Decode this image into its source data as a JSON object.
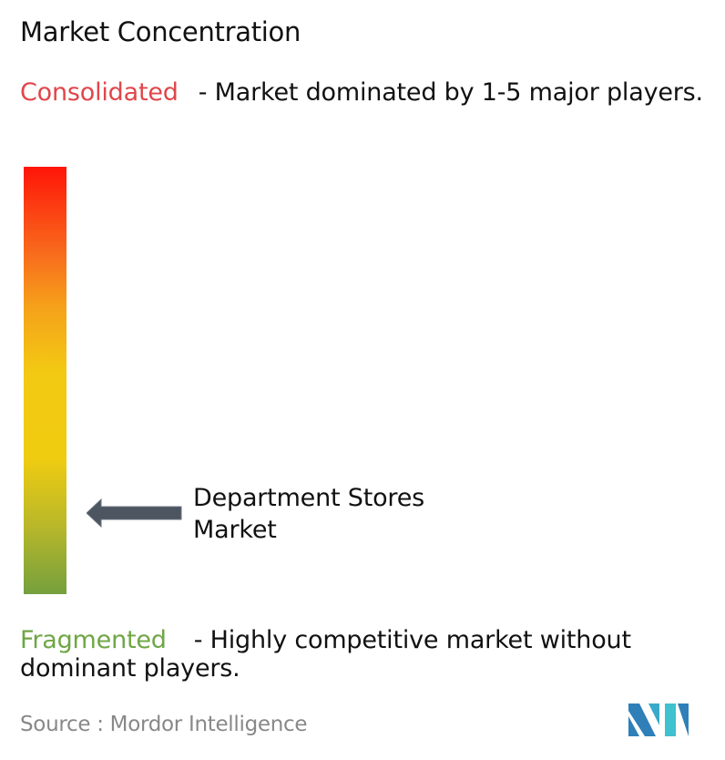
{
  "title": "Market Concentration",
  "consolidated": {
    "label": "Consolidated",
    "description": "- Market dominated by 1-5 major players.",
    "color": "#e0464a"
  },
  "fragmented": {
    "label": "Fragmented",
    "description": "- Highly competitive market without dominant players.",
    "color": "#6fa644"
  },
  "marker": {
    "label": "Department Stores Market",
    "level": 0.19,
    "arrow_color": "#4d5560"
  },
  "source": "Source :  Mordor Intelligence",
  "logo": {
    "name": "mordor-intelligence-logo",
    "text": "MI"
  }
}
